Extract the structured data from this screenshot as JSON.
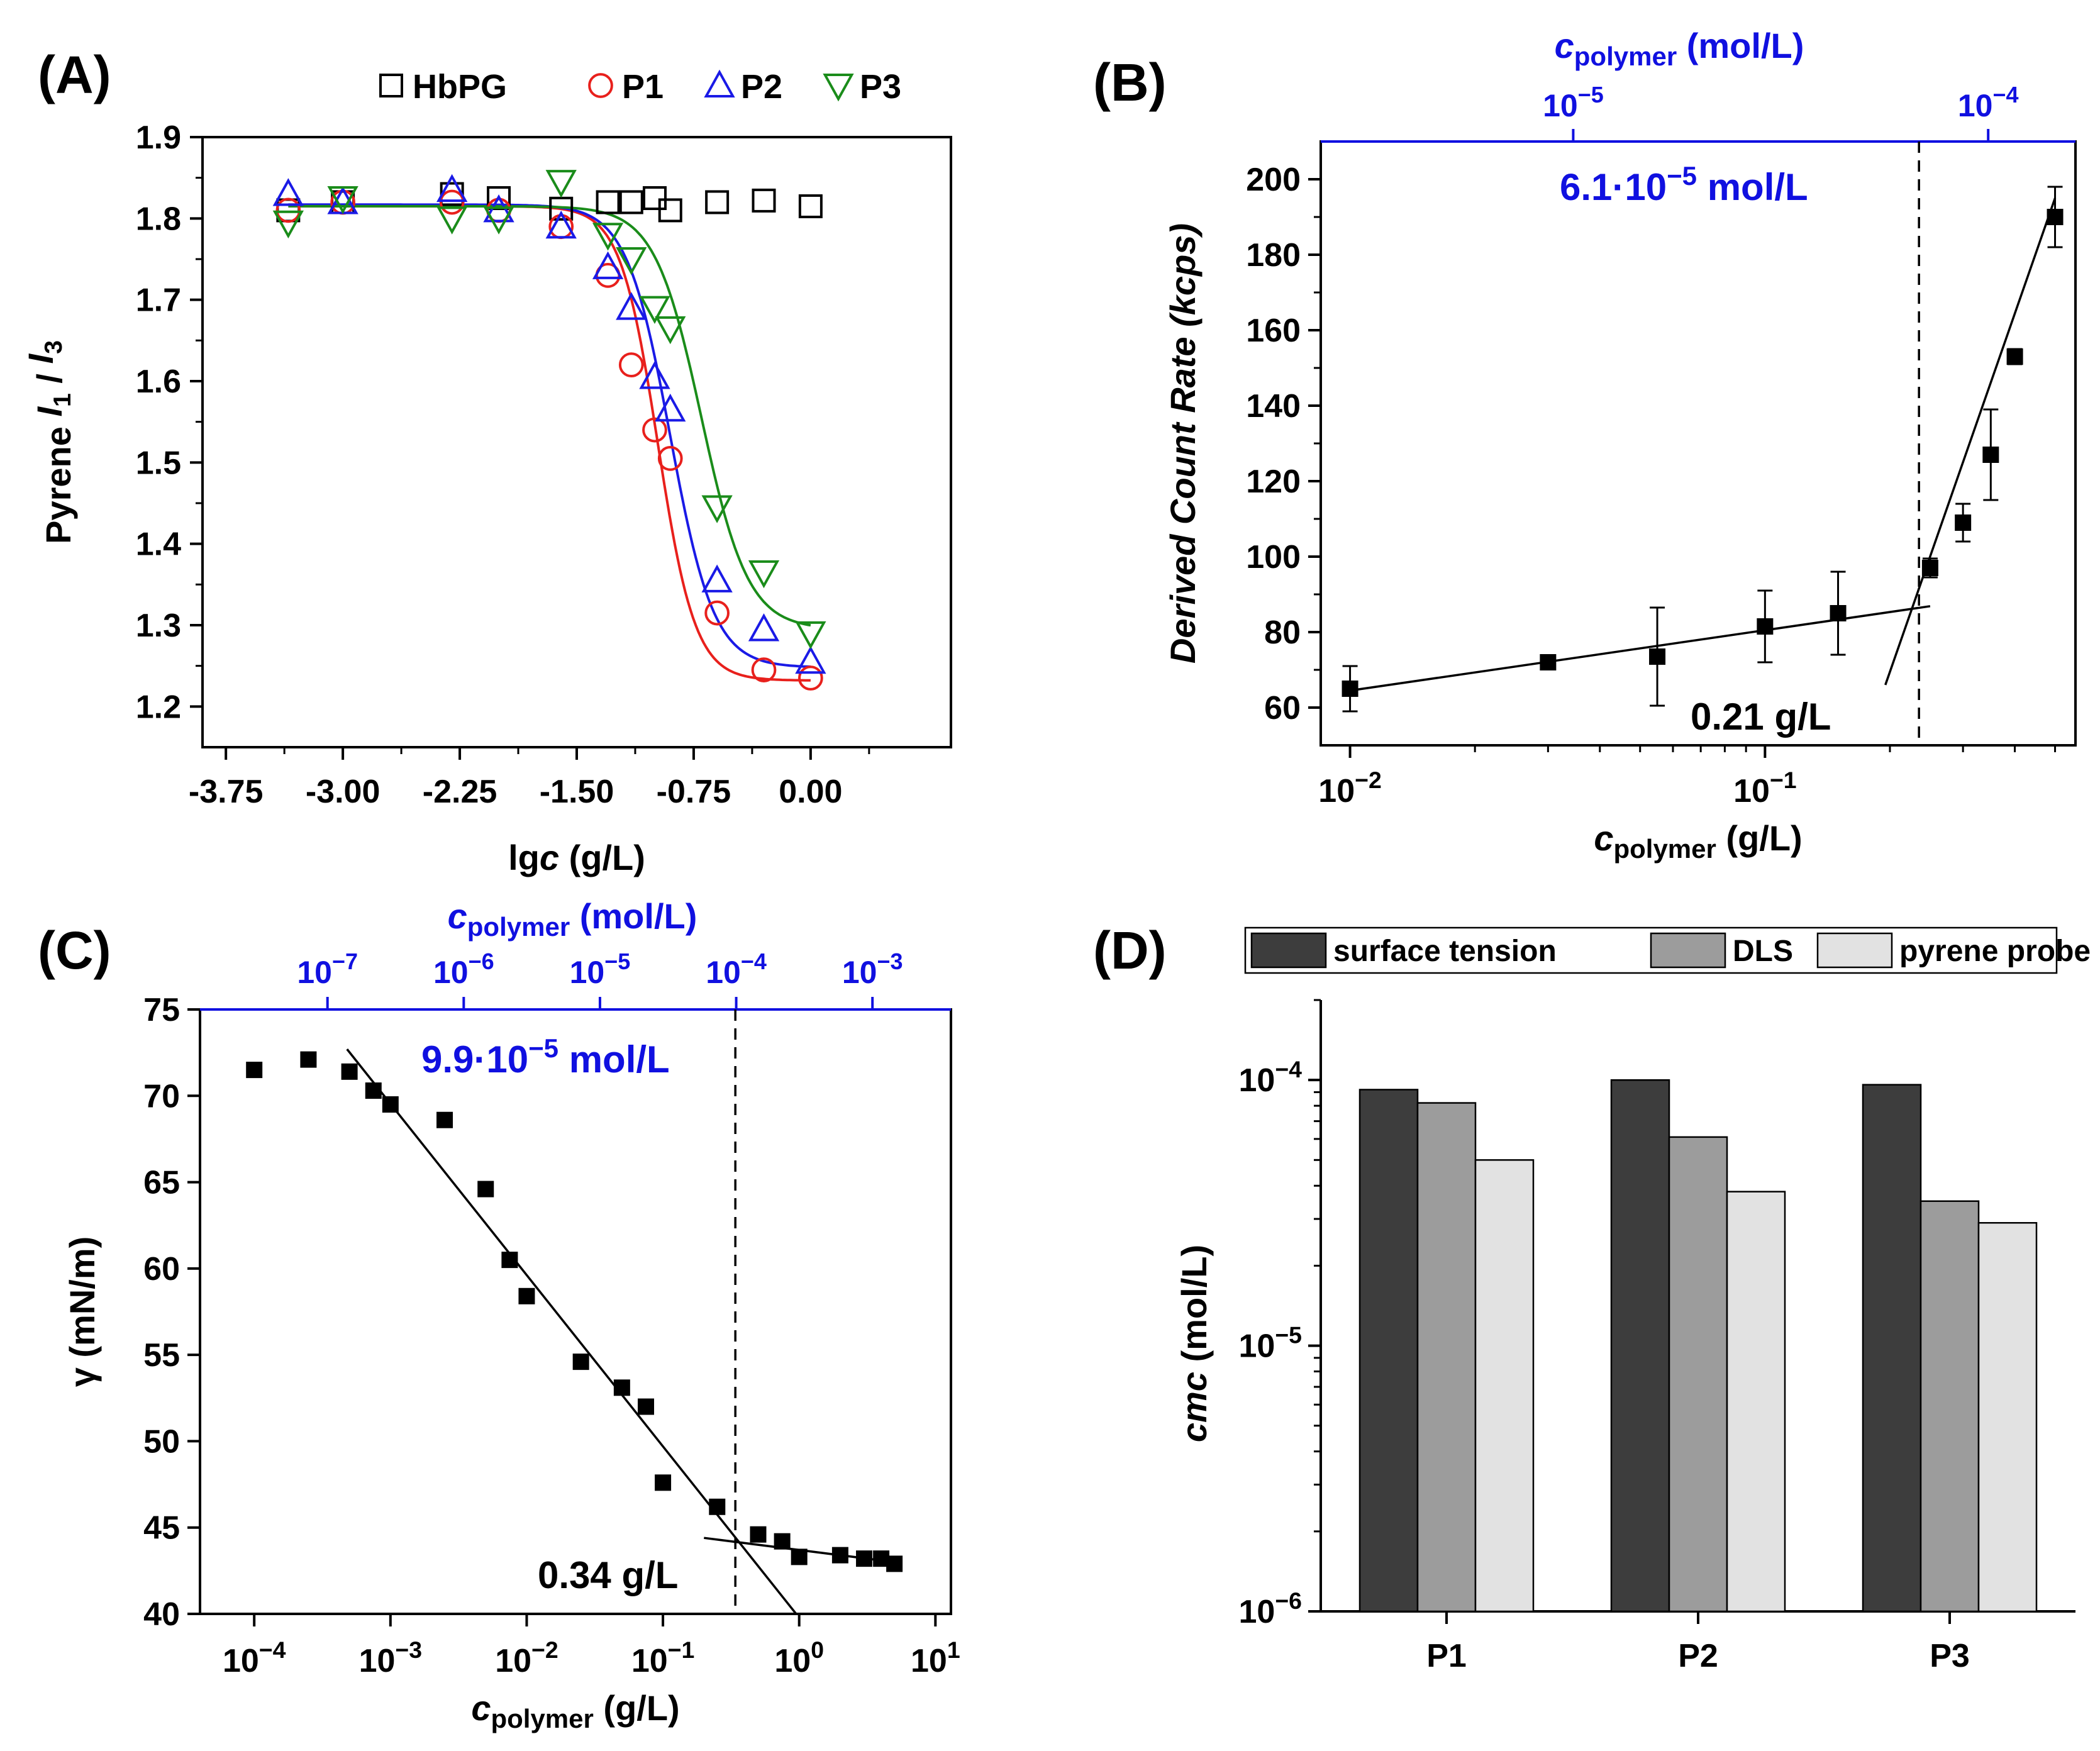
{
  "panels": {
    "A": {
      "label": "(A)"
    },
    "B": {
      "label": "(B)"
    },
    "C": {
      "label": "(C)"
    },
    "D": {
      "label": "(D)"
    }
  },
  "chart_data": [
    {
      "panel": "A",
      "type": "scatter",
      "xlabel": "lgc  (g/L)",
      "ylabel": "Pyrene I1 / I3",
      "xlim": [
        -3.9,
        0.9
      ],
      "ylim": [
        1.15,
        1.9
      ],
      "xticks": [
        "-3.75",
        "-3.00",
        "-2.25",
        "-1.50",
        "-0.75",
        "0.00"
      ],
      "yticks": [
        "1.2",
        "1.3",
        "1.4",
        "1.5",
        "1.6",
        "1.7",
        "1.8",
        "1.9"
      ],
      "legend": [
        "HbPG",
        "P1",
        "P2",
        "P3"
      ],
      "colors": {
        "HbPG": "#000000",
        "P1": "#e8201c",
        "P2": "#1a1ae6",
        "P3": "#1a8c1a"
      },
      "series": [
        {
          "name": "HbPG",
          "marker": "square",
          "x": [
            -3.35,
            -3.0,
            -2.3,
            -2.0,
            -1.6,
            -1.3,
            -1.15,
            -1.0,
            -0.9,
            -0.6,
            -0.3,
            0.0
          ],
          "y": [
            1.81,
            1.82,
            1.83,
            1.825,
            1.812,
            1.82,
            1.82,
            1.825,
            1.81,
            1.82,
            1.822,
            1.815
          ]
        },
        {
          "name": "P1",
          "marker": "circle",
          "x": [
            -3.35,
            -3.0,
            -2.3,
            -2.0,
            -1.6,
            -1.3,
            -1.15,
            -1.0,
            -0.9,
            -0.6,
            -0.3,
            0.0
          ],
          "y": [
            1.81,
            1.82,
            1.82,
            1.81,
            1.79,
            1.73,
            1.62,
            1.54,
            1.505,
            1.315,
            1.245,
            1.235
          ]
        },
        {
          "name": "P2",
          "marker": "triangle-up",
          "x": [
            -3.35,
            -3.0,
            -2.3,
            -2.0,
            -1.6,
            -1.3,
            -1.15,
            -1.0,
            -0.9,
            -0.6,
            -0.3,
            0.0
          ],
          "y": [
            1.83,
            1.82,
            1.835,
            1.81,
            1.79,
            1.74,
            1.69,
            1.605,
            1.565,
            1.355,
            1.295,
            1.255
          ]
        },
        {
          "name": "P3",
          "marker": "triangle-down",
          "x": [
            -3.35,
            -3.0,
            -2.3,
            -2.0,
            -1.6,
            -1.3,
            -1.15,
            -1.0,
            -0.9,
            -0.6,
            -0.3,
            0.0
          ],
          "y": [
            1.795,
            1.825,
            1.8,
            1.8,
            1.845,
            1.78,
            1.75,
            1.69,
            1.665,
            1.445,
            1.365,
            1.29
          ]
        }
      ],
      "fits": [
        {
          "name": "P1",
          "top": 1.815,
          "bottom": 1.232,
          "x0": -0.98,
          "dx": 0.12
        },
        {
          "name": "P2",
          "top": 1.817,
          "bottom": 1.248,
          "x0": -0.9,
          "dx": 0.14
        },
        {
          "name": "P3",
          "top": 1.815,
          "bottom": 1.295,
          "x0": -0.7,
          "dx": 0.15
        }
      ]
    },
    {
      "panel": "B",
      "type": "scatter",
      "xscale": "log",
      "xlabel": "cpolymer (g/L)",
      "top_xlabel": "cpolymer (mol/L)",
      "ylabel": "Derived Count Rate (kcps)",
      "xlim": [
        0.0085,
        0.56
      ],
      "ylim": [
        50,
        210
      ],
      "xticks": [
        "10-2",
        "10-1"
      ],
      "top_xticks": [
        "10-5",
        "10-4"
      ],
      "yticks": [
        "60",
        "80",
        "100",
        "120",
        "140",
        "160",
        "180",
        "200"
      ],
      "x": [
        0.01,
        0.03,
        0.055,
        0.1,
        0.15,
        0.25,
        0.3,
        0.35,
        0.4,
        0.5
      ],
      "y": [
        65,
        72,
        73.5,
        81.5,
        85,
        97,
        109,
        127,
        153,
        190
      ],
      "yerr": [
        6,
        1.5,
        13,
        9.5,
        11,
        2.5,
        5,
        12,
        2,
        8
      ],
      "cmc_annotation": "6.1·10-5 mol/L",
      "break_annotation": "0.21 g/L"
    },
    {
      "panel": "C",
      "type": "scatter",
      "xscale": "log",
      "xlabel": "cpolymer (g/L)",
      "top_xlabel": "cpolymer (mol/L)",
      "ylabel": "γ (mN/m)",
      "xlim": [
        4e-05,
        13
      ],
      "ylim": [
        40,
        75
      ],
      "xticks": [
        "10-4",
        "10-3",
        "10-2",
        "10-1",
        "100",
        "101"
      ],
      "top_xticks": [
        "10-7",
        "10-6",
        "10-5",
        "10-4",
        "10-3"
      ],
      "yticks": [
        "40",
        "45",
        "50",
        "55",
        "60",
        "65",
        "70",
        "75"
      ],
      "x": [
        0.0001,
        0.00025,
        0.0005,
        0.00075,
        0.001,
        0.0025,
        0.005,
        0.0075,
        0.01,
        0.025,
        0.05,
        0.075,
        0.1,
        0.25,
        0.5,
        0.75,
        1,
        2,
        3,
        4,
        5
      ],
      "y": [
        71.5,
        72.1,
        71.4,
        70.3,
        69.5,
        68.6,
        64.6,
        60.5,
        58.4,
        54.6,
        53.1,
        52.0,
        47.6,
        46.2,
        44.6,
        44.2,
        43.3,
        43.4,
        43.2,
        43.2,
        42.9
      ],
      "cmc_annotation": "9.9·10-5 mol/L",
      "break_annotation": "0.34 g/L"
    },
    {
      "panel": "D",
      "type": "bar",
      "yscale": "log",
      "ylabel": "cmc (mol/L)",
      "ylim": [
        1e-06,
        0.0002
      ],
      "yticks": [
        "10-6",
        "10-5",
        "10-4"
      ],
      "categories": [
        "P1",
        "P2",
        "P3"
      ],
      "series": [
        {
          "name": "surface tension",
          "color": "#3d3d3d",
          "values": [
            9.2e-05,
            0.0001,
            9.6e-05
          ]
        },
        {
          "name": "DLS",
          "color": "#9c9c9c",
          "values": [
            8.2e-05,
            6.1e-05,
            3.5e-05
          ]
        },
        {
          "name": "pyrene probe",
          "color": "#e2e2e2",
          "values": [
            5e-05,
            3.8e-05,
            2.9e-05
          ]
        }
      ]
    }
  ]
}
